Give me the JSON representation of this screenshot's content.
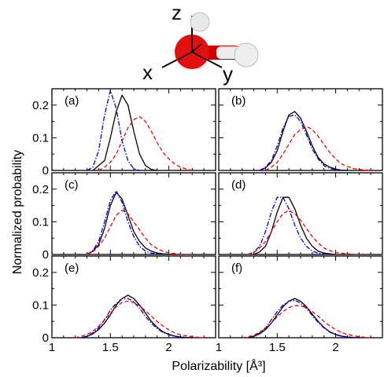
{
  "molecule": {
    "axis_labels": [
      "z",
      "x",
      "y"
    ],
    "colors": {
      "oxygen": "#e01010",
      "hydrogen": "#e6e6e6",
      "bond_red": "#cc0000"
    }
  },
  "chart_data": {
    "type": "line",
    "xlabel": "Polarizability [Å³]",
    "ylabel": "Normalized probability",
    "xlim": [
      1.0,
      2.4
    ],
    "ylim": [
      0.0,
      0.25
    ],
    "xticks": [
      1,
      1.5,
      2
    ],
    "xtick_labels": [
      "1",
      "1.5",
      "2"
    ],
    "yticks": [
      0,
      0.1,
      0.2
    ],
    "ytick_labels": [
      "0",
      "0.1",
      "0.2"
    ],
    "series_styles": [
      {
        "color": "#000000",
        "dash": ""
      },
      {
        "color": "#0000cc",
        "dash": "6,2,1.5,2"
      },
      {
        "color": "#ee0000",
        "dash": "5,3"
      }
    ],
    "panels": [
      {
        "label": "(a)",
        "series": [
          {
            "x": [
              1.35,
              1.45,
              1.5,
              1.55,
              1.6,
              1.65,
              1.7,
              1.75,
              1.8,
              1.85,
              1.9
            ],
            "y": [
              0.0,
              0.03,
              0.1,
              0.18,
              0.23,
              0.2,
              0.12,
              0.05,
              0.015,
              0.003,
              0.0
            ]
          },
          {
            "x": [
              1.3,
              1.35,
              1.4,
              1.45,
              1.5,
              1.55,
              1.6,
              1.65,
              1.7,
              1.75
            ],
            "y": [
              0.0,
              0.01,
              0.06,
              0.17,
              0.245,
              0.19,
              0.09,
              0.03,
              0.005,
              0.0
            ]
          },
          {
            "x": [
              1.4,
              1.45,
              1.5,
              1.55,
              1.6,
              1.65,
              1.7,
              1.75,
              1.8,
              1.85,
              1.9,
              1.95,
              2.0,
              2.05,
              2.1,
              2.15,
              2.2
            ],
            "y": [
              0.0,
              0.01,
              0.025,
              0.05,
              0.09,
              0.13,
              0.155,
              0.165,
              0.15,
              0.12,
              0.085,
              0.055,
              0.035,
              0.02,
              0.01,
              0.004,
              0.0
            ]
          }
        ]
      },
      {
        "label": "(b)",
        "series": [
          {
            "x": [
              1.35,
              1.4,
              1.45,
              1.5,
              1.55,
              1.6,
              1.65,
              1.7,
              1.75,
              1.8,
              1.85,
              1.9,
              1.95,
              2.0,
              2.05,
              2.1
            ],
            "y": [
              0.0,
              0.008,
              0.025,
              0.06,
              0.12,
              0.17,
              0.18,
              0.16,
              0.12,
              0.075,
              0.04,
              0.02,
              0.01,
              0.004,
              0.001,
              0.0
            ]
          },
          {
            "x": [
              1.35,
              1.4,
              1.45,
              1.5,
              1.55,
              1.6,
              1.65,
              1.7,
              1.75,
              1.8,
              1.85,
              1.9,
              1.95,
              2.0,
              2.05
            ],
            "y": [
              0.0,
              0.01,
              0.03,
              0.075,
              0.13,
              0.165,
              0.17,
              0.15,
              0.11,
              0.065,
              0.035,
              0.015,
              0.006,
              0.002,
              0.0
            ]
          },
          {
            "x": [
              1.4,
              1.45,
              1.5,
              1.55,
              1.6,
              1.65,
              1.7,
              1.75,
              1.8,
              1.85,
              1.9,
              1.95,
              2.0,
              2.05,
              2.1,
              2.15,
              2.2,
              2.3
            ],
            "y": [
              0.0,
              0.01,
              0.025,
              0.05,
              0.08,
              0.11,
              0.125,
              0.135,
              0.125,
              0.105,
              0.08,
              0.055,
              0.035,
              0.02,
              0.012,
              0.006,
              0.003,
              0.0
            ]
          }
        ]
      },
      {
        "label": "(c)",
        "series": [
          {
            "x": [
              1.3,
              1.35,
              1.4,
              1.45,
              1.5,
              1.55,
              1.6,
              1.65,
              1.7,
              1.75,
              1.8,
              1.85,
              1.9,
              1.95,
              2.0,
              2.05
            ],
            "y": [
              0.0,
              0.01,
              0.03,
              0.08,
              0.15,
              0.19,
              0.17,
              0.12,
              0.07,
              0.04,
              0.02,
              0.01,
              0.004,
              0.002,
              0.001,
              0.0
            ]
          },
          {
            "x": [
              1.3,
              1.35,
              1.4,
              1.45,
              1.5,
              1.55,
              1.6,
              1.65,
              1.7,
              1.75,
              1.8,
              1.85,
              1.9,
              1.95,
              2.0
            ],
            "y": [
              0.0,
              0.012,
              0.04,
              0.1,
              0.165,
              0.195,
              0.16,
              0.1,
              0.055,
              0.025,
              0.01,
              0.004,
              0.002,
              0.001,
              0.0
            ]
          },
          {
            "x": [
              1.3,
              1.35,
              1.4,
              1.45,
              1.5,
              1.55,
              1.6,
              1.65,
              1.7,
              1.75,
              1.8,
              1.85,
              1.9,
              1.95,
              2.0,
              2.05,
              2.1,
              2.2
            ],
            "y": [
              0.0,
              0.008,
              0.025,
              0.05,
              0.085,
              0.12,
              0.135,
              0.125,
              0.1,
              0.075,
              0.05,
              0.03,
              0.018,
              0.01,
              0.005,
              0.003,
              0.001,
              0.0
            ]
          }
        ]
      },
      {
        "label": "(d)",
        "series": [
          {
            "x": [
              1.3,
              1.35,
              1.4,
              1.45,
              1.5,
              1.55,
              1.6,
              1.65,
              1.7,
              1.75,
              1.8,
              1.85,
              1.9,
              1.95,
              2.0
            ],
            "y": [
              0.0,
              0.008,
              0.025,
              0.07,
              0.13,
              0.175,
              0.175,
              0.14,
              0.09,
              0.05,
              0.025,
              0.01,
              0.004,
              0.002,
              0.0
            ]
          },
          {
            "x": [
              1.25,
              1.3,
              1.35,
              1.4,
              1.45,
              1.5,
              1.55,
              1.6,
              1.65,
              1.7,
              1.75,
              1.8,
              1.85,
              1.9,
              1.95
            ],
            "y": [
              0.0,
              0.008,
              0.025,
              0.07,
              0.13,
              0.175,
              0.175,
              0.14,
              0.09,
              0.05,
              0.025,
              0.01,
              0.004,
              0.001,
              0.0
            ]
          },
          {
            "x": [
              1.25,
              1.3,
              1.35,
              1.4,
              1.45,
              1.5,
              1.55,
              1.6,
              1.65,
              1.7,
              1.75,
              1.8,
              1.85,
              1.9,
              1.95,
              2.0,
              2.1,
              2.2
            ],
            "y": [
              0.0,
              0.006,
              0.02,
              0.04,
              0.07,
              0.1,
              0.125,
              0.135,
              0.125,
              0.105,
              0.08,
              0.055,
              0.035,
              0.02,
              0.012,
              0.006,
              0.002,
              0.0
            ]
          }
        ]
      },
      {
        "label": "(e)",
        "series": [
          {
            "x": [
              1.25,
              1.3,
              1.35,
              1.4,
              1.45,
              1.5,
              1.55,
              1.6,
              1.65,
              1.7,
              1.75,
              1.8,
              1.85,
              1.9,
              1.95,
              2.0,
              2.05,
              2.1,
              2.2
            ],
            "y": [
              0.0,
              0.004,
              0.012,
              0.025,
              0.045,
              0.07,
              0.1,
              0.12,
              0.13,
              0.12,
              0.1,
              0.075,
              0.05,
              0.032,
              0.018,
              0.01,
              0.005,
              0.002,
              0.0
            ]
          },
          {
            "x": [
              1.25,
              1.3,
              1.35,
              1.4,
              1.45,
              1.5,
              1.55,
              1.6,
              1.65,
              1.7,
              1.75,
              1.8,
              1.85,
              1.9,
              1.95,
              2.0,
              2.05,
              2.1,
              2.2
            ],
            "y": [
              0.0,
              0.005,
              0.015,
              0.03,
              0.055,
              0.085,
              0.105,
              0.12,
              0.12,
              0.11,
              0.09,
              0.065,
              0.045,
              0.028,
              0.016,
              0.009,
              0.004,
              0.002,
              0.0
            ]
          },
          {
            "x": [
              1.2,
              1.25,
              1.3,
              1.35,
              1.4,
              1.45,
              1.5,
              1.55,
              1.6,
              1.65,
              1.7,
              1.75,
              1.8,
              1.85,
              1.9,
              1.95,
              2.0,
              2.05,
              2.1,
              2.2,
              2.3
            ],
            "y": [
              0.0,
              0.004,
              0.01,
              0.02,
              0.035,
              0.055,
              0.075,
              0.095,
              0.108,
              0.112,
              0.108,
              0.098,
              0.082,
              0.066,
              0.05,
              0.036,
              0.024,
              0.015,
              0.009,
              0.003,
              0.0
            ]
          }
        ]
      },
      {
        "label": "(f)",
        "series": [
          {
            "x": [
              1.25,
              1.3,
              1.35,
              1.4,
              1.45,
              1.5,
              1.55,
              1.6,
              1.65,
              1.7,
              1.75,
              1.8,
              1.85,
              1.9,
              1.95,
              2.0,
              2.05,
              2.1,
              2.2
            ],
            "y": [
              0.0,
              0.004,
              0.012,
              0.025,
              0.045,
              0.07,
              0.095,
              0.112,
              0.12,
              0.112,
              0.095,
              0.072,
              0.05,
              0.032,
              0.018,
              0.01,
              0.005,
              0.002,
              0.0
            ]
          },
          {
            "x": [
              1.25,
              1.3,
              1.35,
              1.4,
              1.45,
              1.5,
              1.55,
              1.6,
              1.65,
              1.7,
              1.75,
              1.8,
              1.85,
              1.9,
              1.95,
              2.0,
              2.05,
              2.1,
              2.2
            ],
            "y": [
              0.0,
              0.005,
              0.015,
              0.03,
              0.055,
              0.08,
              0.1,
              0.112,
              0.115,
              0.106,
              0.09,
              0.068,
              0.047,
              0.03,
              0.017,
              0.009,
              0.004,
              0.002,
              0.0
            ]
          },
          {
            "x": [
              1.2,
              1.25,
              1.3,
              1.35,
              1.4,
              1.45,
              1.5,
              1.55,
              1.6,
              1.65,
              1.7,
              1.75,
              1.8,
              1.85,
              1.9,
              1.95,
              2.0,
              2.05,
              2.1,
              2.2,
              2.3
            ],
            "y": [
              0.0,
              0.003,
              0.008,
              0.017,
              0.03,
              0.046,
              0.064,
              0.08,
              0.092,
              0.098,
              0.098,
              0.092,
              0.08,
              0.066,
              0.05,
              0.036,
              0.025,
              0.016,
              0.01,
              0.003,
              0.0
            ]
          }
        ]
      }
    ]
  }
}
